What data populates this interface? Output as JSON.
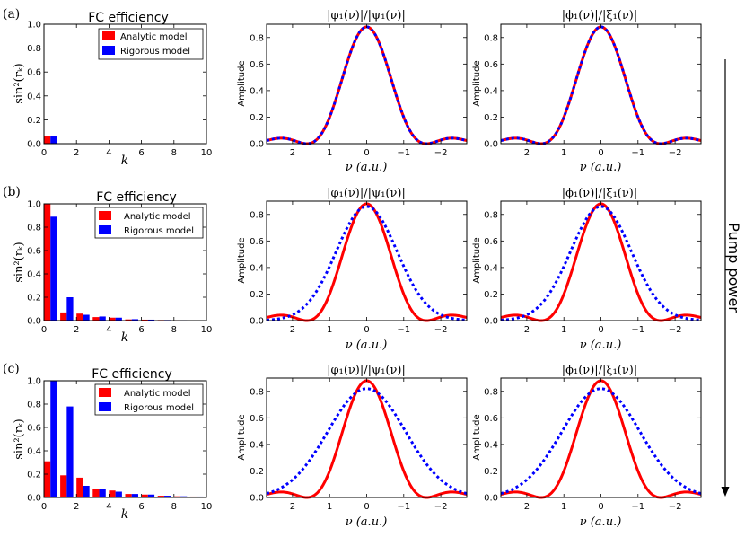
{
  "colors": {
    "analytic": "#ff0000",
    "rigorous": "#0000ff",
    "axis": "#000000"
  },
  "side_label": "Pump power",
  "rows": [
    {
      "label": "(a)",
      "bar": {
        "title": "FC efficiency",
        "ylabel": "sin²(rₖ)",
        "xlabel": "k",
        "legend": [
          "Analytic model",
          "Rigorous model"
        ]
      },
      "left": {
        "title": "|φ₁(ν)|/|ψ₁(ν)|",
        "ylabel": "Amplitude",
        "xlabel": "ν (a.u.)"
      },
      "right": {
        "title": "|ϕ₁(ν)|/|ξ₁(ν)|",
        "ylabel": "Amplitude",
        "xlabel": "ν (a.u.)"
      }
    },
    {
      "label": "(b)",
      "bar": {
        "title": "FC efficiency",
        "ylabel": "sin²(rₖ)",
        "xlabel": "k",
        "legend": [
          "Analytic model",
          "Rigorous model"
        ]
      },
      "left": {
        "title": "|φ₁(ν)|/|ψ₁(ν)|",
        "ylabel": "Amplitude",
        "xlabel": "ν (a.u.)"
      },
      "right": {
        "title": "|ϕ₁(ν)|/|ξ₁(ν)|",
        "ylabel": "Amplitude",
        "xlabel": "ν (a.u.)"
      }
    },
    {
      "label": "(c)",
      "bar": {
        "title": "FC efficiency",
        "ylabel": "sin²(rₖ)",
        "xlabel": "k",
        "legend": [
          "Analytic model",
          "Rigorous model"
        ]
      },
      "left": {
        "title": "|φ₁(ν)|/|ψ₁(ν)|",
        "ylabel": "Amplitude",
        "xlabel": "ν (a.u.)"
      },
      "right": {
        "title": "|ϕ₁(ν)|/|ξ₁(ν)|",
        "ylabel": "Amplitude",
        "xlabel": "ν (a.u.)"
      }
    }
  ],
  "chart_data": [
    {
      "id": "a-bar",
      "type": "bar",
      "title": "FC efficiency",
      "xlabel": "k",
      "ylabel": "sin^2(r_k)",
      "xlim": [
        0,
        10
      ],
      "ylim": [
        0,
        1.0
      ],
      "xticks": [
        "0",
        "2",
        "4",
        "6",
        "8",
        "10"
      ],
      "yticks": [
        "0.0",
        "0.2",
        "0.4",
        "0.6",
        "0.8",
        "1.0"
      ],
      "categories": [
        0
      ],
      "series": [
        {
          "name": "Analytic model",
          "values": [
            0.06
          ]
        },
        {
          "name": "Rigorous model",
          "values": [
            0.06
          ]
        }
      ]
    },
    {
      "id": "a-left",
      "type": "line",
      "title": "|phi1(nu)|/|psi1(nu)|",
      "xlabel": "nu (a.u.)",
      "ylabel": "Amplitude",
      "xlim": [
        2.7,
        -2.7
      ],
      "ylim": [
        0,
        0.9
      ],
      "xticks": [
        "2",
        "1",
        "0",
        "−1",
        "−2"
      ],
      "yticks": [
        "0.0",
        "0.2",
        "0.4",
        "0.6",
        "0.8"
      ],
      "series": [
        {
          "name": "analytic (solid red)",
          "peak": 0.88,
          "width": 0.88,
          "style": "sinc"
        },
        {
          "name": "rigorous (dotted blue)",
          "peak": 0.88,
          "width": 0.88,
          "style": "sinc"
        }
      ]
    },
    {
      "id": "a-right",
      "type": "line",
      "title": "|phi1(nu)|/|xi1(nu)|",
      "xlabel": "nu (a.u.)",
      "ylabel": "Amplitude",
      "xlim": [
        2.7,
        -2.7
      ],
      "ylim": [
        0,
        0.9
      ],
      "xticks": [
        "2",
        "1",
        "0",
        "−1",
        "−2"
      ],
      "yticks": [
        "0.0",
        "0.2",
        "0.4",
        "0.6",
        "0.8"
      ],
      "series": [
        {
          "name": "analytic (solid red)",
          "peak": 0.88,
          "width": 0.88,
          "style": "sinc"
        },
        {
          "name": "rigorous (dotted blue)",
          "peak": 0.88,
          "width": 0.88,
          "style": "sinc"
        }
      ]
    },
    {
      "id": "b-bar",
      "type": "bar",
      "title": "FC efficiency",
      "xlabel": "k",
      "ylabel": "sin^2(r_k)",
      "xlim": [
        0,
        10
      ],
      "ylim": [
        0,
        1.0
      ],
      "xticks": [
        "0",
        "2",
        "4",
        "6",
        "8",
        "10"
      ],
      "yticks": [
        "0.0",
        "0.2",
        "0.4",
        "0.6",
        "0.8",
        "1.0"
      ],
      "categories": [
        0,
        1,
        2,
        3,
        4,
        5,
        6,
        7,
        8,
        9
      ],
      "series": [
        {
          "name": "Analytic model",
          "values": [
            1.0,
            0.07,
            0.06,
            0.03,
            0.025,
            0.01,
            0.008,
            0.005,
            0.004,
            0.003
          ]
        },
        {
          "name": "Rigorous model",
          "values": [
            0.89,
            0.2,
            0.05,
            0.035,
            0.025,
            0.012,
            0.008,
            0.005,
            0.004,
            0.003
          ]
        }
      ]
    },
    {
      "id": "b-left",
      "type": "line",
      "title": "|phi1(nu)|/|psi1(nu)|",
      "xlabel": "nu (a.u.)",
      "ylabel": "Amplitude",
      "xlim": [
        2.7,
        -2.7
      ],
      "ylim": [
        0,
        0.9
      ],
      "xticks": [
        "2",
        "1",
        "0",
        "−1",
        "−2"
      ],
      "yticks": [
        "0.0",
        "0.2",
        "0.4",
        "0.6",
        "0.8"
      ],
      "series": [
        {
          "name": "analytic (solid red)",
          "peak": 0.88,
          "width": 0.88,
          "style": "sinc"
        },
        {
          "name": "rigorous (dotted blue)",
          "peak": 0.86,
          "width": 0.82,
          "style": "gauss"
        }
      ]
    },
    {
      "id": "b-right",
      "type": "line",
      "title": "|phi1(nu)|/|xi1(nu)|",
      "xlabel": "nu (a.u.)",
      "ylabel": "Amplitude",
      "xlim": [
        2.7,
        -2.7
      ],
      "ylim": [
        0,
        0.9
      ],
      "xticks": [
        "2",
        "1",
        "0",
        "−1",
        "−2"
      ],
      "yticks": [
        "0.0",
        "0.2",
        "0.4",
        "0.6",
        "0.8"
      ],
      "series": [
        {
          "name": "analytic (solid red)",
          "peak": 0.88,
          "width": 0.88,
          "style": "sinc"
        },
        {
          "name": "rigorous (dotted blue)",
          "peak": 0.86,
          "width": 0.82,
          "style": "gauss"
        }
      ]
    },
    {
      "id": "c-bar",
      "type": "bar",
      "title": "FC efficiency",
      "xlabel": "k",
      "ylabel": "sin^2(r_k)",
      "xlim": [
        0,
        10
      ],
      "ylim": [
        0,
        1.0
      ],
      "xticks": [
        "0",
        "2",
        "4",
        "6",
        "8",
        "10"
      ],
      "yticks": [
        "0.0",
        "0.2",
        "0.4",
        "0.6",
        "0.8",
        "1.0"
      ],
      "categories": [
        0,
        1,
        2,
        3,
        4,
        5,
        6,
        7,
        8,
        9
      ],
      "series": [
        {
          "name": "Analytic model",
          "values": [
            0.31,
            0.19,
            0.17,
            0.07,
            0.06,
            0.03,
            0.025,
            0.015,
            0.01,
            0.008
          ]
        },
        {
          "name": "Rigorous model",
          "values": [
            1.0,
            0.78,
            0.1,
            0.07,
            0.05,
            0.03,
            0.025,
            0.015,
            0.01,
            0.008
          ]
        }
      ]
    },
    {
      "id": "c-left",
      "type": "line",
      "title": "|phi1(nu)|/|psi1(nu)|",
      "xlabel": "nu (a.u.)",
      "ylabel": "Amplitude",
      "xlim": [
        2.7,
        -2.7
      ],
      "ylim": [
        0,
        0.9
      ],
      "xticks": [
        "2",
        "1",
        "0",
        "−1",
        "−2"
      ],
      "yticks": [
        "0.0",
        "0.2",
        "0.4",
        "0.6",
        "0.8"
      ],
      "series": [
        {
          "name": "analytic (solid red)",
          "peak": 0.88,
          "width": 0.88,
          "style": "sinc"
        },
        {
          "name": "rigorous (dotted blue)",
          "peak": 0.82,
          "width": 1.05,
          "style": "gauss"
        }
      ]
    },
    {
      "id": "c-right",
      "type": "line",
      "title": "|phi1(nu)|/|xi1(nu)|",
      "xlabel": "nu (a.u.)",
      "ylabel": "Amplitude",
      "xlim": [
        2.7,
        -2.7
      ],
      "ylim": [
        0,
        0.9
      ],
      "xticks": [
        "2",
        "1",
        "0",
        "−1",
        "−2"
      ],
      "yticks": [
        "0.0",
        "0.2",
        "0.4",
        "0.6",
        "0.8"
      ],
      "series": [
        {
          "name": "analytic (solid red)",
          "peak": 0.88,
          "width": 0.88,
          "style": "sinc"
        },
        {
          "name": "rigorous (dotted blue)",
          "peak": 0.82,
          "width": 1.05,
          "style": "gauss"
        }
      ]
    }
  ]
}
